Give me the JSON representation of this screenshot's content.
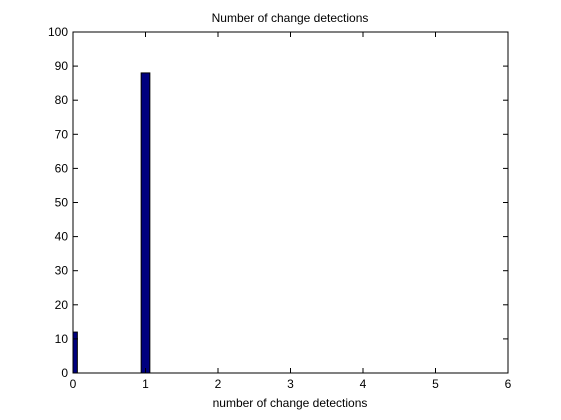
{
  "chart_data": {
    "type": "bar",
    "title": "Number of change detections",
    "xlabel": "number of change detections",
    "ylabel": "",
    "x": [
      0,
      1
    ],
    "values": [
      12,
      88
    ],
    "xlim": [
      0,
      6
    ],
    "ylim": [
      0,
      100
    ],
    "xticks": [
      0,
      1,
      2,
      3,
      4,
      5,
      6
    ],
    "yticks": [
      0,
      10,
      20,
      30,
      40,
      50,
      60,
      70,
      80,
      90,
      100
    ],
    "bar_width": 0.12,
    "bar_color": "#00007f",
    "grid": false,
    "legend": "none"
  }
}
